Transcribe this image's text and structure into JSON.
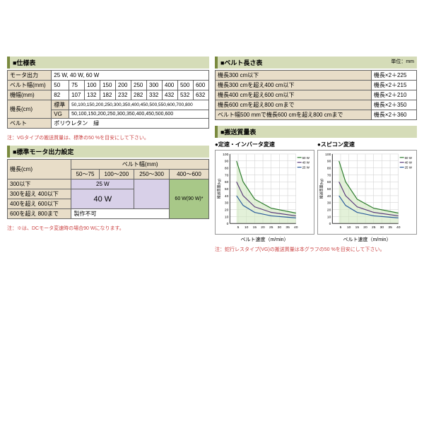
{
  "spec_table": {
    "title": "■仕様表",
    "rows": [
      {
        "label": "モータ出力",
        "value": "25 W, 40 W, 60 W"
      },
      {
        "label": "ベルト幅(mm)",
        "values": [
          "50",
          "75",
          "100",
          "150",
          "200",
          "250",
          "300",
          "400",
          "500",
          "600"
        ]
      },
      {
        "label": "機幅(mm)",
        "values": [
          "82",
          "107",
          "132",
          "182",
          "232",
          "282",
          "332",
          "432",
          "532",
          "632"
        ]
      },
      {
        "label": "機長(cm)",
        "sublabel1": "標準",
        "subval1": "50,100,150,200,250,300,350,400,450,500,550,600,700,800",
        "sublabel2": "VG",
        "subval2": "50,100,150,200,250,300,350,400,450,500,600"
      },
      {
        "label": "ベルト",
        "value": "ポリウレタン　緑"
      }
    ],
    "note": "注：VGタイプの搬送質量は、標準の50 %を目安にして下さい。"
  },
  "motor_table": {
    "title": "■標準モータ出力設定",
    "row_header": "機長(cm)",
    "col_header": "ベルト幅(mm)",
    "cols": [
      "50～75",
      "100～200",
      "250～300",
      "400～600"
    ],
    "rows": [
      "300以下",
      "300を超え 400以下",
      "400を超え 600以下",
      "600を超え 800まで"
    ],
    "val_25w": "25 W",
    "val_40w": "40 W",
    "val_60w": "60 W(90 W)*",
    "val_na": "製作不可",
    "note": "注：※は、DCモータ変速時の場合90 Wになります。"
  },
  "length_table": {
    "title": "■ベルト長さ表",
    "unit": "単位：mm",
    "rows": [
      {
        "cond": "機長300 cm以下",
        "formula": "機長×2＋225"
      },
      {
        "cond": "機長300 cmを超え400 cm以下",
        "formula": "機長×2＋215"
      },
      {
        "cond": "機長400 cmを超え600 cm以下",
        "formula": "機長×2＋210"
      },
      {
        "cond": "機長600 cmを超え800 cmまで",
        "formula": "機長×2＋350"
      },
      {
        "cond": "ベルト幅500 mmで機長600 cmを超え800 cmまで",
        "formula": "機長×2＋360"
      }
    ]
  },
  "charts": {
    "title": "■搬送質量表",
    "chart1_title": "●定速・インバータ変速",
    "chart2_title": "●スピコン変速",
    "ylabel": "搬送質量(kg)",
    "xlabel": "ベルト速度（m/min）",
    "ylim": [
      0,
      100
    ],
    "ytick_step": 10,
    "xlim": [
      0,
      40
    ],
    "xticks": [
      5,
      10,
      15,
      20,
      25,
      30,
      35,
      40
    ],
    "grid_color": "#ccc",
    "fill_color": "#d0e8c0",
    "series": [
      {
        "label": "60 W",
        "color": "#2a7a2a",
        "points": [
          [
            4,
            90
          ],
          [
            8,
            60
          ],
          [
            15,
            35
          ],
          [
            25,
            22
          ],
          [
            40,
            15
          ]
        ]
      },
      {
        "label": "40 W",
        "color": "#5a3a7a",
        "points": [
          [
            4,
            60
          ],
          [
            8,
            40
          ],
          [
            15,
            24
          ],
          [
            25,
            16
          ],
          [
            40,
            11
          ]
        ]
      },
      {
        "label": "25 W",
        "color": "#2a5a9a",
        "points": [
          [
            4,
            40
          ],
          [
            8,
            26
          ],
          [
            15,
            16
          ],
          [
            25,
            11
          ],
          [
            40,
            8
          ]
        ]
      }
    ],
    "note": "注：蛇行レスタイプ(VG)の搬送質量は本グラフの50 %を目安にして下さい。"
  }
}
